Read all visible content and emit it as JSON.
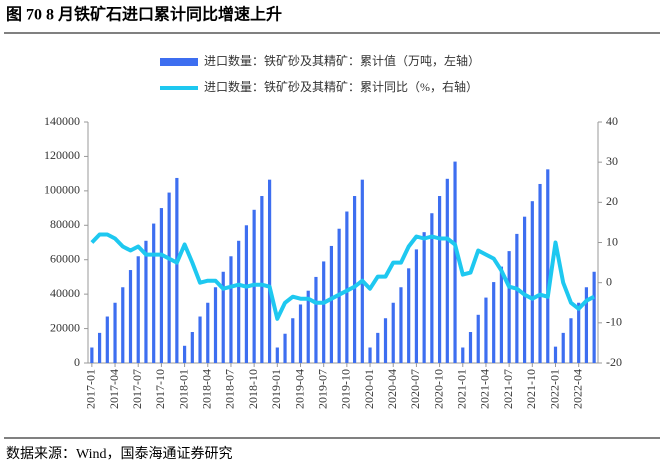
{
  "chart_data": {
    "type": "bar",
    "title": "图 70 8 月铁矿石进口累计同比增速上升",
    "source": "数据来源：Wind，国泰海通证券研究",
    "legend": "top",
    "categories": [
      "2017-01",
      null,
      null,
      "2017-04",
      null,
      null,
      "2017-07",
      null,
      null,
      "2017-10",
      null,
      null,
      "2018-01",
      null,
      null,
      "2018-04",
      null,
      null,
      "2018-07",
      null,
      null,
      "2018-10",
      null,
      null,
      "2019-01",
      null,
      null,
      "2019-04",
      null,
      null,
      "2019-07",
      null,
      null,
      "2019-10",
      null,
      null,
      "2020-01",
      null,
      null,
      "2020-04",
      null,
      null,
      "2020-07",
      null,
      null,
      "2020-10",
      null,
      null,
      "2021-01",
      null,
      null,
      "2021-04",
      null,
      null,
      "2021-07",
      null,
      null,
      "2021-10",
      null,
      null,
      "2022-01",
      null,
      null,
      "2022-04",
      null,
      null
    ],
    "series": [
      {
        "name": "进口数量：铁矿砂及其精矿：累计值（万吨，左轴）",
        "type": "bar",
        "color": "#3d6ef0",
        "values": [
          9000,
          17500,
          27000,
          35000,
          44000,
          54000,
          62000,
          71000,
          81000,
          90000,
          99000,
          107500,
          10000,
          18000,
          27000,
          35000,
          44000,
          53000,
          62000,
          71000,
          80000,
          89000,
          97000,
          106500,
          9000,
          17000,
          26000,
          34000,
          42000,
          50000,
          59000,
          68000,
          78000,
          88000,
          97000,
          106500,
          9000,
          17500,
          26000,
          35000,
          44000,
          55000,
          66000,
          76000,
          87000,
          97000,
          107000,
          117000,
          9000,
          18000,
          28000,
          38000,
          47000,
          56000,
          65000,
          75000,
          85000,
          94000,
          104000,
          112500,
          9500,
          17500,
          26000,
          35000,
          44000,
          53000
        ]
      },
      {
        "name": "进口数量：铁矿砂及其精矿：累计同比（%，右轴）",
        "type": "line",
        "axis": "y2",
        "color": "#1ec8f0",
        "values": [
          10,
          12,
          12,
          11,
          9,
          8,
          9,
          7,
          7,
          7,
          6,
          5,
          9.5,
          5,
          0,
          0.5,
          0.5,
          -1.5,
          -1,
          -0.5,
          -1,
          -0.5,
          -0.5,
          -1,
          -9,
          -5,
          -3.5,
          -4,
          -4,
          -5,
          -5,
          -4,
          -3,
          -2,
          -1,
          0.5,
          -1.5,
          1.5,
          1.5,
          5,
          5,
          9,
          11.5,
          11,
          11.5,
          11,
          11,
          9.5,
          2,
          2.5,
          8,
          7,
          6,
          3,
          -1,
          -1.5,
          -3,
          -4,
          -3,
          -3.5,
          10,
          0,
          -5,
          -6.5,
          -4.5,
          -3.5
        ]
      }
    ],
    "ylim": [
      0,
      140000
    ],
    "yticks": [
      0,
      20000,
      40000,
      60000,
      80000,
      100000,
      120000,
      140000
    ],
    "y2lim": [
      -20,
      40
    ],
    "y2ticks": [
      -20,
      -10,
      0,
      10,
      20,
      30,
      40
    ]
  }
}
